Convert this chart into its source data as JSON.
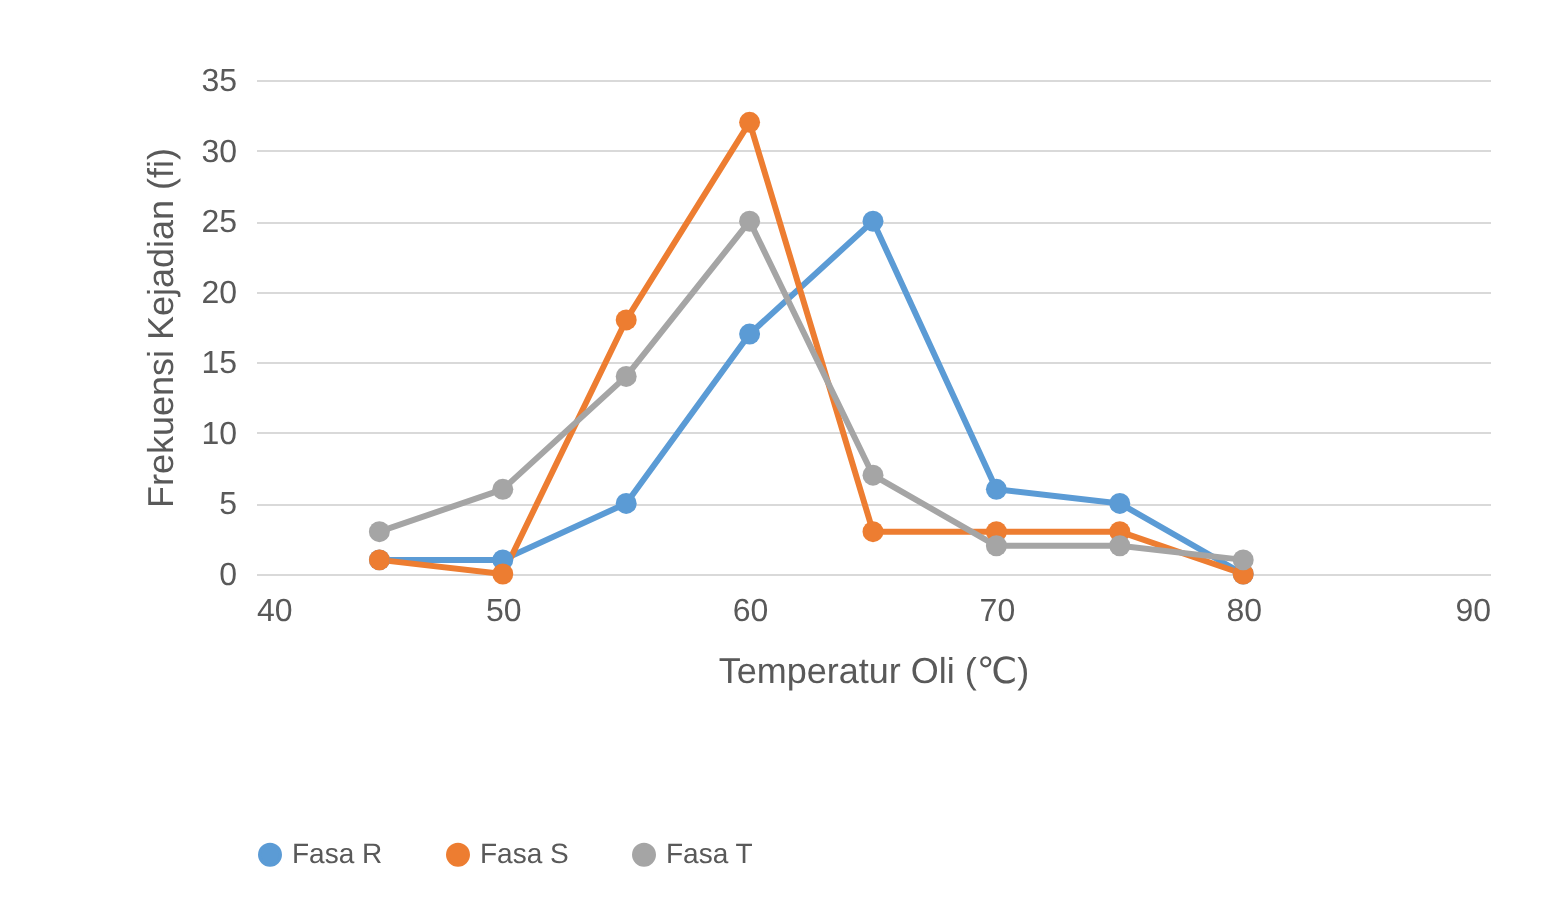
{
  "chart_data": {
    "type": "line",
    "xlabel": "Temperatur Oli (℃)",
    "ylabel": "Frekuensi Kejadian (fi)",
    "x": [
      45,
      50,
      55,
      60,
      65,
      70,
      75,
      80
    ],
    "series": [
      {
        "name": "Fasa R",
        "color": "#5b9bd5",
        "values": [
          1,
          1,
          5,
          17,
          25,
          6,
          5,
          0
        ]
      },
      {
        "name": "Fasa S",
        "color": "#ed7d31",
        "values": [
          1,
          0,
          18,
          32,
          3,
          3,
          3,
          0
        ]
      },
      {
        "name": "Fasa T",
        "color": "#a5a5a5",
        "values": [
          3,
          6,
          14,
          25,
          7,
          2,
          2,
          1
        ]
      }
    ],
    "xlim": [
      40,
      90
    ],
    "xticks": [
      40,
      50,
      60,
      70,
      80,
      90
    ],
    "ylim": [
      0,
      35
    ],
    "yticks": [
      0,
      5,
      10,
      15,
      20,
      25,
      30,
      35
    ],
    "grid": "y",
    "legend": "bottom",
    "marker": "circle",
    "line_style": "solid"
  }
}
